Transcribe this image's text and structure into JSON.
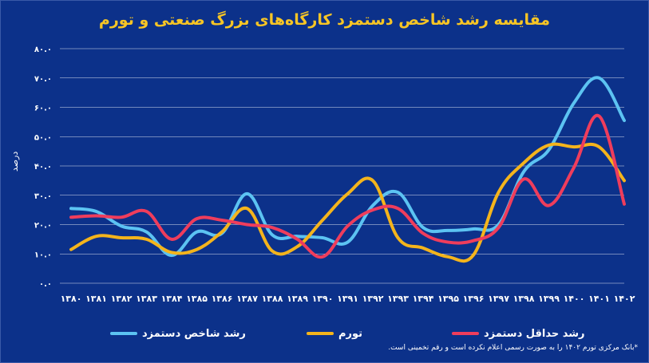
{
  "title": "مقایسه رشد شاخص دستمزد کارگاه‌های بزرگ صنعتی و تورم",
  "footnote": "*بانک مرکزی تورم ۱۴۰۲ را به صورت رسمی اعلام نکرده است و رقم تخمینی است.",
  "colors": {
    "background": "#0c318a",
    "title": "#f7c525",
    "grid": "#ffffff",
    "text": "#ffffff"
  },
  "chart_data": {
    "type": "line",
    "title": "مقایسه رشد شاخص دستمزد کارگاه‌های بزرگ صنعتی و تورم",
    "ylabel": "درصد",
    "xlabel": "",
    "ylim": [
      0,
      80
    ],
    "yticks": [
      "۰.۰",
      "۱۰.۰",
      "۲۰.۰",
      "۳۰.۰",
      "۴۰.۰",
      "۵۰.۰",
      "۶۰.۰",
      "۷۰.۰",
      "۸۰.۰"
    ],
    "grid": true,
    "legend_position": "bottom",
    "categories": [
      "۱۳۸۰",
      "۱۳۸۱",
      "۱۳۸۲",
      "۱۳۸۳",
      "۱۳۸۴",
      "۱۳۸۵",
      "۱۳۸۶",
      "۱۳۸۷",
      "۱۳۸۸",
      "۱۳۸۹",
      "۱۳۹۰",
      "۱۳۹۱",
      "۱۳۹۲",
      "۱۳۹۳",
      "۱۳۹۴",
      "۱۳۹۵",
      "۱۳۹۶",
      "۱۳۹۷",
      "۱۳۹۸",
      "۱۳۹۹",
      "۱۴۰۰",
      "۱۴۰۱",
      "۱۴۰۲"
    ],
    "series": [
      {
        "name": "رشد شاخص دستمزد",
        "color": "#5cc3f2",
        "values": [
          25.5,
          24.5,
          19.5,
          17.5,
          9.5,
          17.5,
          17,
          30.5,
          16.5,
          16,
          15.5,
          14,
          26.5,
          31,
          19,
          18,
          18.5,
          20,
          38,
          45.5,
          61.5,
          70,
          55.5
        ]
      },
      {
        "name": "تورم",
        "color": "#f4b41c",
        "values": [
          11.5,
          16,
          15.5,
          15,
          10.5,
          11.5,
          17.5,
          25.5,
          11,
          12.5,
          21.5,
          30.5,
          35,
          15.5,
          12,
          9,
          9.6,
          31,
          41,
          47.1,
          46.5,
          46.5,
          35
        ]
      },
      {
        "name": "رشد حداقل دستمزد",
        "color": "#ef3d5c",
        "values": [
          22.5,
          23,
          22.5,
          24.5,
          15,
          22,
          21.5,
          20,
          19,
          15,
          9,
          19.5,
          25,
          25.5,
          17,
          14,
          14.5,
          19,
          35.5,
          26.5,
          39.5,
          57,
          27
        ]
      }
    ]
  }
}
